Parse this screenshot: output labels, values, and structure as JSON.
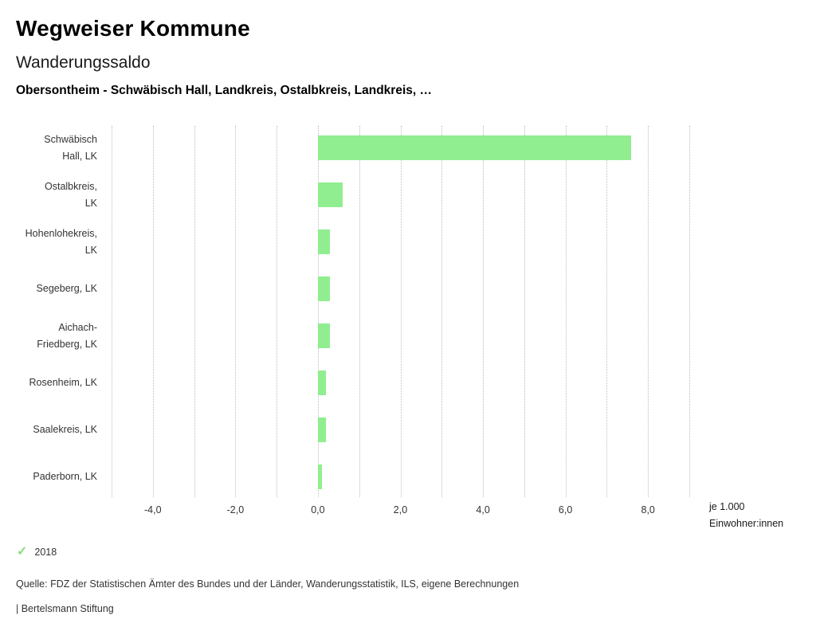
{
  "header": {
    "title": "Wegweiser Kommune",
    "subtitle": "Wanderungssaldo",
    "comparison": "Obersontheim - Schwäbisch Hall, Landkreis, Ostalbkreis, Landkreis, …"
  },
  "chart_data": {
    "type": "bar",
    "orientation": "horizontal",
    "title": "Wanderungssaldo",
    "unit": "je 1.000 Einwohner:innen",
    "unit_label_lines": [
      "je 1.000",
      "Einwohner:innen"
    ],
    "categories": [
      "Schwäbisch Hall, LK",
      "Ostalbkreis, LK",
      "Hohenlohekreis, LK",
      "Segeberg, LK",
      "Aichach-Friedberg, LK",
      "Rosenheim, LK",
      "Saalekreis, LK",
      "Paderborn, LK"
    ],
    "category_label_lines": [
      [
        "Schwäbisch",
        "Hall, LK"
      ],
      [
        "Ostalbkreis,",
        "LK"
      ],
      [
        "Hohenlohekreis,",
        "LK"
      ],
      [
        "Segeberg, LK"
      ],
      [
        "Aichach-",
        "Friedberg, LK"
      ],
      [
        "Rosenheim, LK"
      ],
      [
        "Saalekreis, LK"
      ],
      [
        "Paderborn, LK"
      ]
    ],
    "series": [
      {
        "name": "2018",
        "values": [
          7.6,
          0.6,
          0.3,
          0.3,
          0.3,
          0.2,
          0.2,
          0.1
        ]
      }
    ],
    "xlim": [
      -5,
      9
    ],
    "grid": true,
    "grid_step": 1,
    "xticks": [
      {
        "value": -4,
        "label": "-4,0"
      },
      {
        "value": -2,
        "label": "-2,0"
      },
      {
        "value": 0,
        "label": "0,0"
      },
      {
        "value": 2,
        "label": "2,0"
      },
      {
        "value": 4,
        "label": "4,0"
      },
      {
        "value": 6,
        "label": "6,0"
      },
      {
        "value": 8,
        "label": "8,0"
      }
    ],
    "bar_color": "#90ee90",
    "legend_position": "bottom-left"
  },
  "legend": {
    "check_icon": "✓",
    "year": "2018",
    "color": "#8bdc80"
  },
  "footer": {
    "source": "Quelle: FDZ der Statistischen Ämter des Bundes und der Länder, Wanderungsstatistik, ILS, eigene Berechnungen",
    "attribution": "| Bertelsmann Stiftung"
  }
}
